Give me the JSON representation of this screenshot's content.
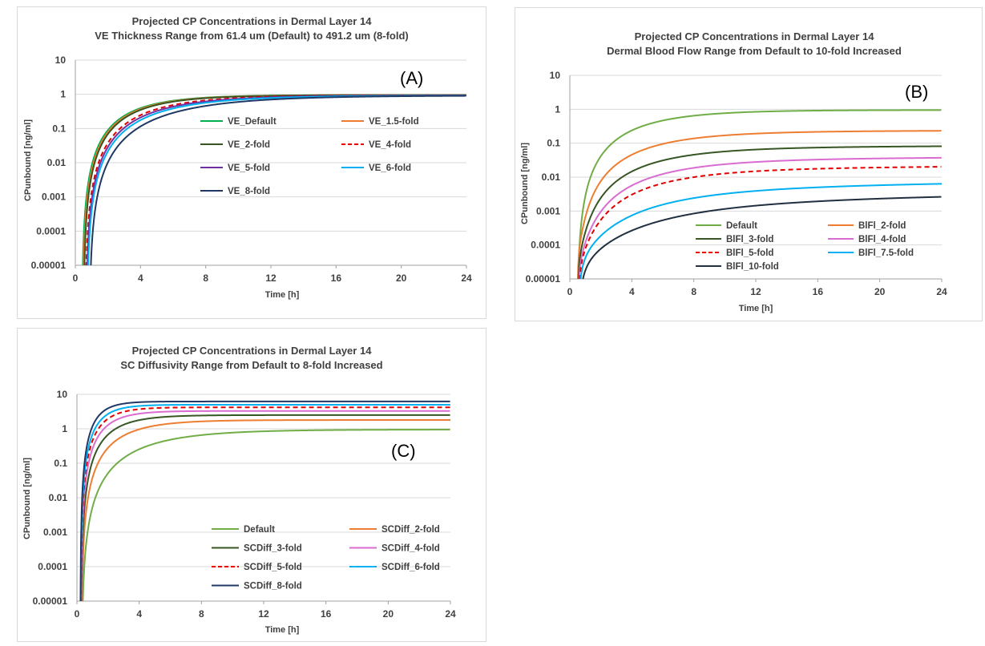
{
  "chart_data": [
    {
      "type": "line",
      "panel_label": "(A)",
      "title": "Projected CP Concentrations in Dermal Layer 14",
      "subtitle": "VE Thickness Range from 61.4 um (Default) to 491.2 um (8-fold)",
      "xlabel": "Time [h]",
      "ylabel": "CPunbound  [ng/ml]",
      "xlim": [
        0,
        24
      ],
      "ylim": [
        1e-05,
        10
      ],
      "y_scale": "log",
      "x_ticks": [
        "0",
        "4",
        "8",
        "12",
        "16",
        "20",
        "24"
      ],
      "y_ticks": [
        "0.00001",
        "0.0001",
        "0.001",
        "0.01",
        "0.1",
        "1",
        "10"
      ],
      "grid": "horizontal",
      "legend_position": "center-right",
      "series": [
        {
          "name": "VE_Default",
          "color": "#00b050",
          "dash": false,
          "A": 0.95,
          "k": 0.38,
          "b": 0.0,
          "t0": 0.4
        },
        {
          "name": "VE_1.5-fold",
          "color": "#ed7d31",
          "dash": false,
          "A": 0.95,
          "k": 0.37,
          "b": 0.0,
          "t0": 0.45
        },
        {
          "name": "VE_2-fold",
          "color": "#375623",
          "dash": false,
          "A": 0.95,
          "k": 0.36,
          "b": 0.0,
          "t0": 0.5
        },
        {
          "name": "VE_4-fold",
          "color": "#e00000",
          "dash": true,
          "A": 0.94,
          "k": 0.3,
          "b": 0.0,
          "t0": 0.6
        },
        {
          "name": "VE_5-fold",
          "color": "#7030a0",
          "dash": false,
          "A": 0.93,
          "k": 0.28,
          "b": 0.0,
          "t0": 0.65
        },
        {
          "name": "VE_6-fold",
          "color": "#00b0f0",
          "dash": false,
          "A": 0.92,
          "k": 0.26,
          "b": 0.0,
          "t0": 0.7
        },
        {
          "name": "VE_8-fold",
          "color": "#1f3864",
          "dash": false,
          "A": 0.92,
          "k": 0.22,
          "b": 0.0,
          "t0": 0.85
        }
      ]
    },
    {
      "type": "line",
      "panel_label": "(B)",
      "title": "Projected CP Concentrations in Dermal Layer 14",
      "subtitle": "Dermal Blood Flow Range from Default to 10-fold Increased",
      "xlabel": "Time [h]",
      "ylabel": "CPunbound  [ng/ml]",
      "xlim": [
        0,
        24
      ],
      "ylim": [
        1e-05,
        10
      ],
      "y_scale": "log",
      "x_ticks": [
        "0",
        "4",
        "8",
        "12",
        "16",
        "20",
        "24"
      ],
      "y_ticks": [
        "0.00001",
        "0.0001",
        "0.001",
        "0.01",
        "0.1",
        "1",
        "10"
      ],
      "grid": "horizontal",
      "legend_position": "bottom-right",
      "series": [
        {
          "name": "Default",
          "color": "#70ad47",
          "dash": false,
          "A": 0.95,
          "k": 0.28,
          "b": 0.0,
          "t0": 0.45
        },
        {
          "name": "BlFl_2-fold",
          "color": "#ed7d31",
          "dash": false,
          "A": 0.22,
          "k": 0.25,
          "b": 0.0006,
          "t0": 0.5
        },
        {
          "name": "BlFl_3-fold",
          "color": "#375623",
          "dash": false,
          "A": 0.075,
          "k": 0.24,
          "b": 0.0003,
          "t0": 0.52
        },
        {
          "name": "BlFl_4-fold",
          "color": "#d96cd0",
          "dash": false,
          "A": 0.033,
          "k": 0.22,
          "b": 0.0002,
          "t0": 0.55
        },
        {
          "name": "BlFl_5-fold",
          "color": "#e00000",
          "dash": true,
          "A": 0.017,
          "k": 0.22,
          "b": 0.00015,
          "t0": 0.57
        },
        {
          "name": "BlFl_7.5-fold",
          "color": "#00b0f0",
          "dash": false,
          "A": 0.0042,
          "k": 0.18,
          "b": 0.0001,
          "t0": 0.6
        },
        {
          "name": "BlFl_10-fold",
          "color": "#203040",
          "dash": false,
          "A": 0.0016,
          "k": 0.15,
          "b": 5e-05,
          "t0": 0.65
        }
      ]
    },
    {
      "type": "line",
      "panel_label": "(C)",
      "title": "Projected CP Concentrations in Dermal Layer 14",
      "subtitle": "SC Diffusivity Range from Default to 8-fold Increased",
      "xlabel": "Time [h]",
      "ylabel": "CPunbound  [ng/ml]",
      "xlim": [
        0,
        24
      ],
      "ylim": [
        1e-05,
        10
      ],
      "y_scale": "log",
      "x_ticks": [
        "0",
        "4",
        "8",
        "12",
        "16",
        "20",
        "24"
      ],
      "y_ticks": [
        "0.00001",
        "0.0001",
        "0.001",
        "0.01",
        "0.1",
        "1",
        "10"
      ],
      "grid": "horizontal",
      "legend_position": "bottom-right",
      "series": [
        {
          "name": "Default",
          "color": "#70ad47",
          "dash": false,
          "A": 0.95,
          "k": 0.28,
          "b": 0.0,
          "t0": 0.3
        },
        {
          "name": "SCDiff_2-fold",
          "color": "#ed7d31",
          "dash": false,
          "A": 1.8,
          "k": 0.45,
          "b": 0.0,
          "t0": 0.28
        },
        {
          "name": "SCDiff_3-fold",
          "color": "#375623",
          "dash": false,
          "A": 2.5,
          "k": 0.6,
          "b": 0.0,
          "t0": 0.26
        },
        {
          "name": "SCDiff_4-fold",
          "color": "#d96cd0",
          "dash": false,
          "A": 3.3,
          "k": 0.75,
          "b": 0.0,
          "t0": 0.25
        },
        {
          "name": "SCDiff_5-fold",
          "color": "#e00000",
          "dash": true,
          "A": 4.2,
          "k": 0.85,
          "b": 0.0,
          "t0": 0.24
        },
        {
          "name": "SCDiff_6-fold",
          "color": "#00b0f0",
          "dash": false,
          "A": 5.0,
          "k": 0.95,
          "b": 0.0,
          "t0": 0.23
        },
        {
          "name": "SCDiff_8-fold",
          "color": "#1f3864",
          "dash": false,
          "A": 6.2,
          "k": 1.1,
          "b": 0.0,
          "t0": 0.22
        }
      ]
    }
  ]
}
